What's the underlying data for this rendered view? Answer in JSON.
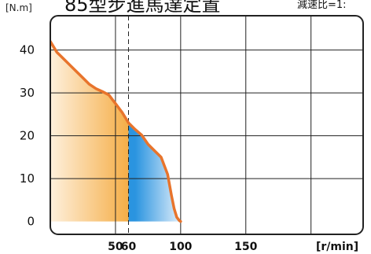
{
  "chart_data": {
    "type": "area",
    "title": "85型步進馬達定置",
    "subtitle": "減速比=1:",
    "ylabel": "[N.m]",
    "xlabel": "[r/min]",
    "xlim": [
      0,
      240
    ],
    "ylim": [
      -3,
      48
    ],
    "y_ticks": [
      0,
      10,
      20,
      30,
      40
    ],
    "x_ticks": [
      50,
      60,
      100,
      150
    ],
    "x_tick_labels": [
      "50",
      "60",
      "100",
      "150"
    ],
    "grid_x": [
      50,
      100,
      150,
      200
    ],
    "grid_y": [
      10,
      20,
      30,
      40
    ],
    "split_x": 60,
    "series": [
      {
        "x": [
          0,
          5,
          10,
          15,
          20,
          25,
          30,
          35,
          40,
          45,
          50,
          55,
          60,
          65,
          70,
          75,
          80,
          85,
          90,
          93,
          95,
          97,
          99,
          100
        ],
        "values": [
          42,
          39.5,
          38,
          36.5,
          35,
          33.5,
          32,
          31,
          30.3,
          29.5,
          27.5,
          25.5,
          23,
          21.5,
          20.2,
          18,
          16.5,
          15,
          11,
          6,
          3,
          1,
          0.2,
          0
        ]
      }
    ],
    "colors": {
      "curve": "#e8742c",
      "fill_orange_dark": "#f4a83a",
      "fill_orange_light": "#fef0dc",
      "fill_blue_dark": "#2a94e0",
      "fill_blue_light": "#e6f1fb",
      "grid": "#222222"
    }
  }
}
